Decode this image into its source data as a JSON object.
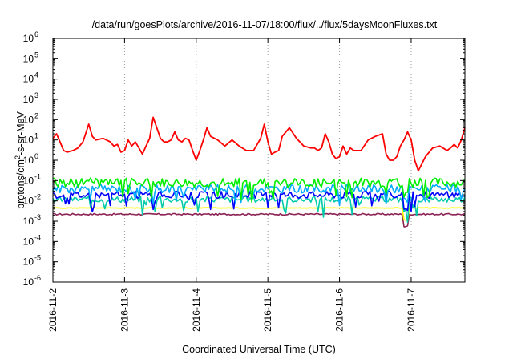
{
  "chart_data": {
    "type": "line",
    "title": "/data/run/goesPlots/archive/2016-11-07/18:00/flux/../flux/5daysMoonFluxes.txt",
    "xlabel": "Coordinated Universal Time (UTC)",
    "ylabel_parts": [
      "protons/cm",
      "2",
      "-s-sr-MeV"
    ],
    "y_scale": "log",
    "ylim": [
      1e-06,
      1000000.0
    ],
    "xlim": [
      "2016-11-02T00:00",
      "2016-11-07T18:00"
    ],
    "grid": "dotted vertical lines at each day",
    "x_ticks": [
      {
        "label": "2016-11-2",
        "value": 0
      },
      {
        "label": "2016-11-3",
        "value": 1
      },
      {
        "label": "2016-11-4",
        "value": 2
      },
      {
        "label": "2016-11-5",
        "value": 3
      },
      {
        "label": "2016-11-6",
        "value": 4
      },
      {
        "label": "2016-11-7",
        "value": 5
      }
    ],
    "y_ticks": [
      {
        "base": "10",
        "exp": "-6",
        "value": -6
      },
      {
        "base": "10",
        "exp": "-5",
        "value": -5
      },
      {
        "base": "10",
        "exp": "-4",
        "value": -4
      },
      {
        "base": "10",
        "exp": "-3",
        "value": -3
      },
      {
        "base": "10",
        "exp": "-2",
        "value": -2
      },
      {
        "base": "10",
        "exp": "-1",
        "value": -1
      },
      {
        "base": "10",
        "exp": "0",
        "value": 0
      },
      {
        "base": "10",
        "exp": "1",
        "value": 1
      },
      {
        "base": "10",
        "exp": "2",
        "value": 2
      },
      {
        "base": "10",
        "exp": "3",
        "value": 3
      },
      {
        "base": "10",
        "exp": "4",
        "value": 4
      },
      {
        "base": "10",
        "exp": "5",
        "value": 5
      },
      {
        "base": "10",
        "exp": "6",
        "value": 6
      }
    ],
    "series": [
      {
        "color": "#ff0000",
        "x": [
          0.0,
          0.05,
          0.1,
          0.15,
          0.2,
          0.28,
          0.35,
          0.42,
          0.5,
          0.55,
          0.6,
          0.7,
          0.8,
          0.85,
          0.9,
          0.95,
          1.0,
          1.05,
          1.1,
          1.15,
          1.2,
          1.25,
          1.3,
          1.35,
          1.4,
          1.45,
          1.5,
          1.55,
          1.6,
          1.65,
          1.7,
          1.75,
          1.8,
          1.85,
          1.9,
          1.95,
          2.0,
          2.05,
          2.1,
          2.15,
          2.2,
          2.3,
          2.4,
          2.5,
          2.6,
          2.7,
          2.8,
          2.85,
          2.9,
          2.95,
          3.0,
          3.05,
          3.1,
          3.15,
          3.2,
          3.3,
          3.4,
          3.5,
          3.6,
          3.65,
          3.7,
          3.75,
          3.8,
          3.85,
          3.9,
          3.95,
          4.0,
          4.05,
          4.1,
          4.15,
          4.2,
          4.3,
          4.4,
          4.5,
          4.6,
          4.65,
          4.7,
          4.75,
          4.8,
          4.85,
          4.9,
          4.95,
          5.0,
          5.05,
          5.1,
          5.2,
          5.3,
          5.4,
          5.5,
          5.55,
          5.6,
          5.65,
          5.7,
          5.75
        ],
        "y": [
          12,
          20,
          8,
          3,
          2.5,
          3,
          4,
          8,
          60,
          15,
          10,
          12,
          8,
          5,
          6,
          2.5,
          3,
          10,
          5,
          8,
          4,
          2,
          5,
          12,
          130,
          40,
          12,
          8,
          8,
          10,
          25,
          10,
          8,
          12,
          10,
          3,
          1,
          3,
          10,
          40,
          15,
          10,
          5,
          10,
          5,
          3,
          3,
          6,
          12,
          60,
          8,
          2,
          2.5,
          3,
          15,
          40,
          12,
          5,
          4,
          4,
          3,
          4,
          20,
          8,
          2,
          1.2,
          1.5,
          5,
          2,
          4,
          3,
          3,
          10,
          15,
          20,
          2,
          1,
          1,
          1.5,
          5,
          10,
          25,
          10,
          1,
          0.3,
          1.5,
          4,
          5,
          3,
          4,
          6,
          4,
          10,
          40
        ]
      },
      {
        "color": "#00ee00",
        "base": 0.08,
        "amp": 0.45
      },
      {
        "color": "#00aaff",
        "base": 0.04,
        "amp": 0.4
      },
      {
        "color": "#0000ff",
        "base": 0.02,
        "amp": 0.35
      },
      {
        "color": "#00ccaa",
        "base": 0.012,
        "amp": 0.3
      },
      {
        "color": "#ffff00",
        "base": 0.0045,
        "amp": 0.03
      },
      {
        "color": "#8b2252",
        "base": 0.0022,
        "amp": 0.08
      }
    ]
  }
}
